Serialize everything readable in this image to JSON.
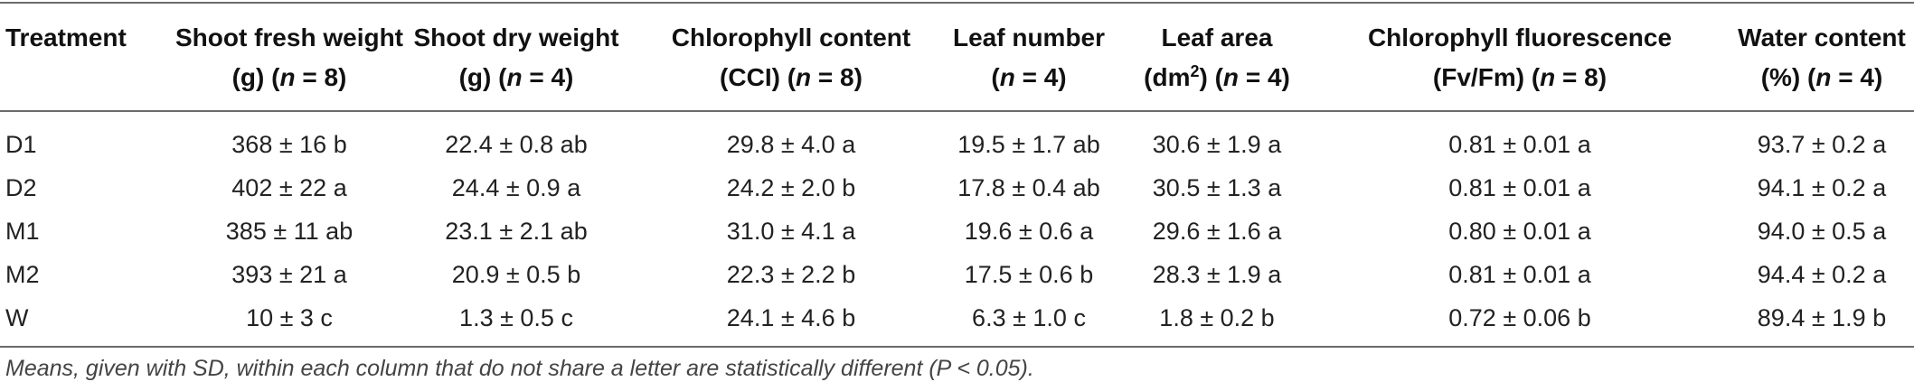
{
  "table": {
    "headers": [
      {
        "line1": "Treatment",
        "line2_pre": "",
        "line2_italic": "",
        "line2_post": "",
        "sup": ""
      },
      {
        "line1": "Shoot fresh weight",
        "line2_pre": "(g) (",
        "line2_italic": "n",
        "line2_post": " = 8)",
        "sup": ""
      },
      {
        "line1": "Shoot dry weight",
        "line2_pre": "(g) (",
        "line2_italic": "n",
        "line2_post": " = 4)",
        "sup": ""
      },
      {
        "line1": "Chlorophyll content",
        "line2_pre": "(CCI) (",
        "line2_italic": "n",
        "line2_post": " = 8)",
        "sup": ""
      },
      {
        "line1": "Leaf number",
        "line2_pre": "(",
        "line2_italic": "n",
        "line2_post": " = 4)",
        "sup": ""
      },
      {
        "line1": "Leaf area",
        "line2_pre": "(dm",
        "line2_italic": "n",
        "line2_post": " = 4)",
        "sup": "2"
      },
      {
        "line1": "Chlorophyll fluorescence",
        "line2_pre": "(Fv/Fm) (",
        "line2_italic": "n",
        "line2_post": " = 8)",
        "sup": ""
      },
      {
        "line1": "Water content",
        "line2_pre": "(%) (",
        "line2_italic": "n",
        "line2_post": " = 4)",
        "sup": ""
      }
    ],
    "rows": [
      [
        "D1",
        "368 ± 16 b",
        "22.4 ± 0.8 ab",
        "29.8 ± 4.0 a",
        "19.5 ± 1.7 ab",
        "30.6 ± 1.9 a",
        "0.81 ± 0.01 a",
        "93.7 ± 0.2 a"
      ],
      [
        "D2",
        "402 ± 22 a",
        "24.4 ± 0.9 a",
        "24.2 ± 2.0 b",
        "17.8 ± 0.4 ab",
        "30.5 ± 1.3 a",
        "0.81 ± 0.01 a",
        "94.1 ± 0.2 a"
      ],
      [
        "M1",
        "385 ± 11 ab",
        "23.1 ± 2.1 ab",
        "31.0 ± 4.1 a",
        "19.6 ± 0.6 a",
        "29.6 ± 1.6 a",
        "0.80 ± 0.01 a",
        "94.0 ± 0.5 a"
      ],
      [
        "M2",
        "393 ± 21 a",
        "20.9 ± 0.5 b",
        "22.3 ± 2.2 b",
        "17.5 ± 0.6 b",
        "28.3 ± 1.9 a",
        "0.81 ± 0.01 a",
        "94.4 ± 0.2 a"
      ],
      [
        "W",
        "10 ± 3 c",
        "1.3 ± 0.5 c",
        "24.1 ± 4.6 b",
        "6.3 ± 1.0 c",
        "1.8 ± 0.2 b",
        "0.72 ± 0.06 b",
        "89.4 ± 1.9 b"
      ]
    ]
  },
  "footnote": "Means, given with SD, within each column that do not share a letter are statistically different (P < 0.05)."
}
